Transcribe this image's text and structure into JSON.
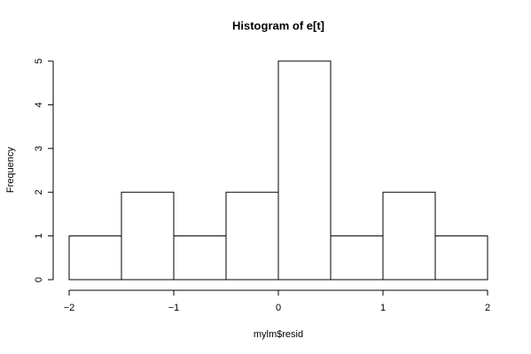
{
  "chart_data": {
    "type": "histogram",
    "title": "Histogram of e[t]",
    "x_label": "mylm$resid",
    "y_label": "Frequency",
    "bins": [
      -2,
      -1.5,
      -1,
      -0.5,
      0,
      0.5,
      1,
      1.5,
      2
    ],
    "values": [
      1,
      2,
      1,
      2,
      5,
      1,
      2,
      1
    ],
    "color": "#ffffff",
    "xlim": [
      -2,
      2
    ],
    "xticks": [
      {
        "value": -2,
        "label": "−2"
      },
      {
        "value": -1,
        "label": "−1"
      },
      0,
      1,
      2
    ],
    "ylim": [
      0,
      5
    ],
    "yticks": [
      0,
      1,
      2,
      3,
      4,
      5
    ]
  }
}
